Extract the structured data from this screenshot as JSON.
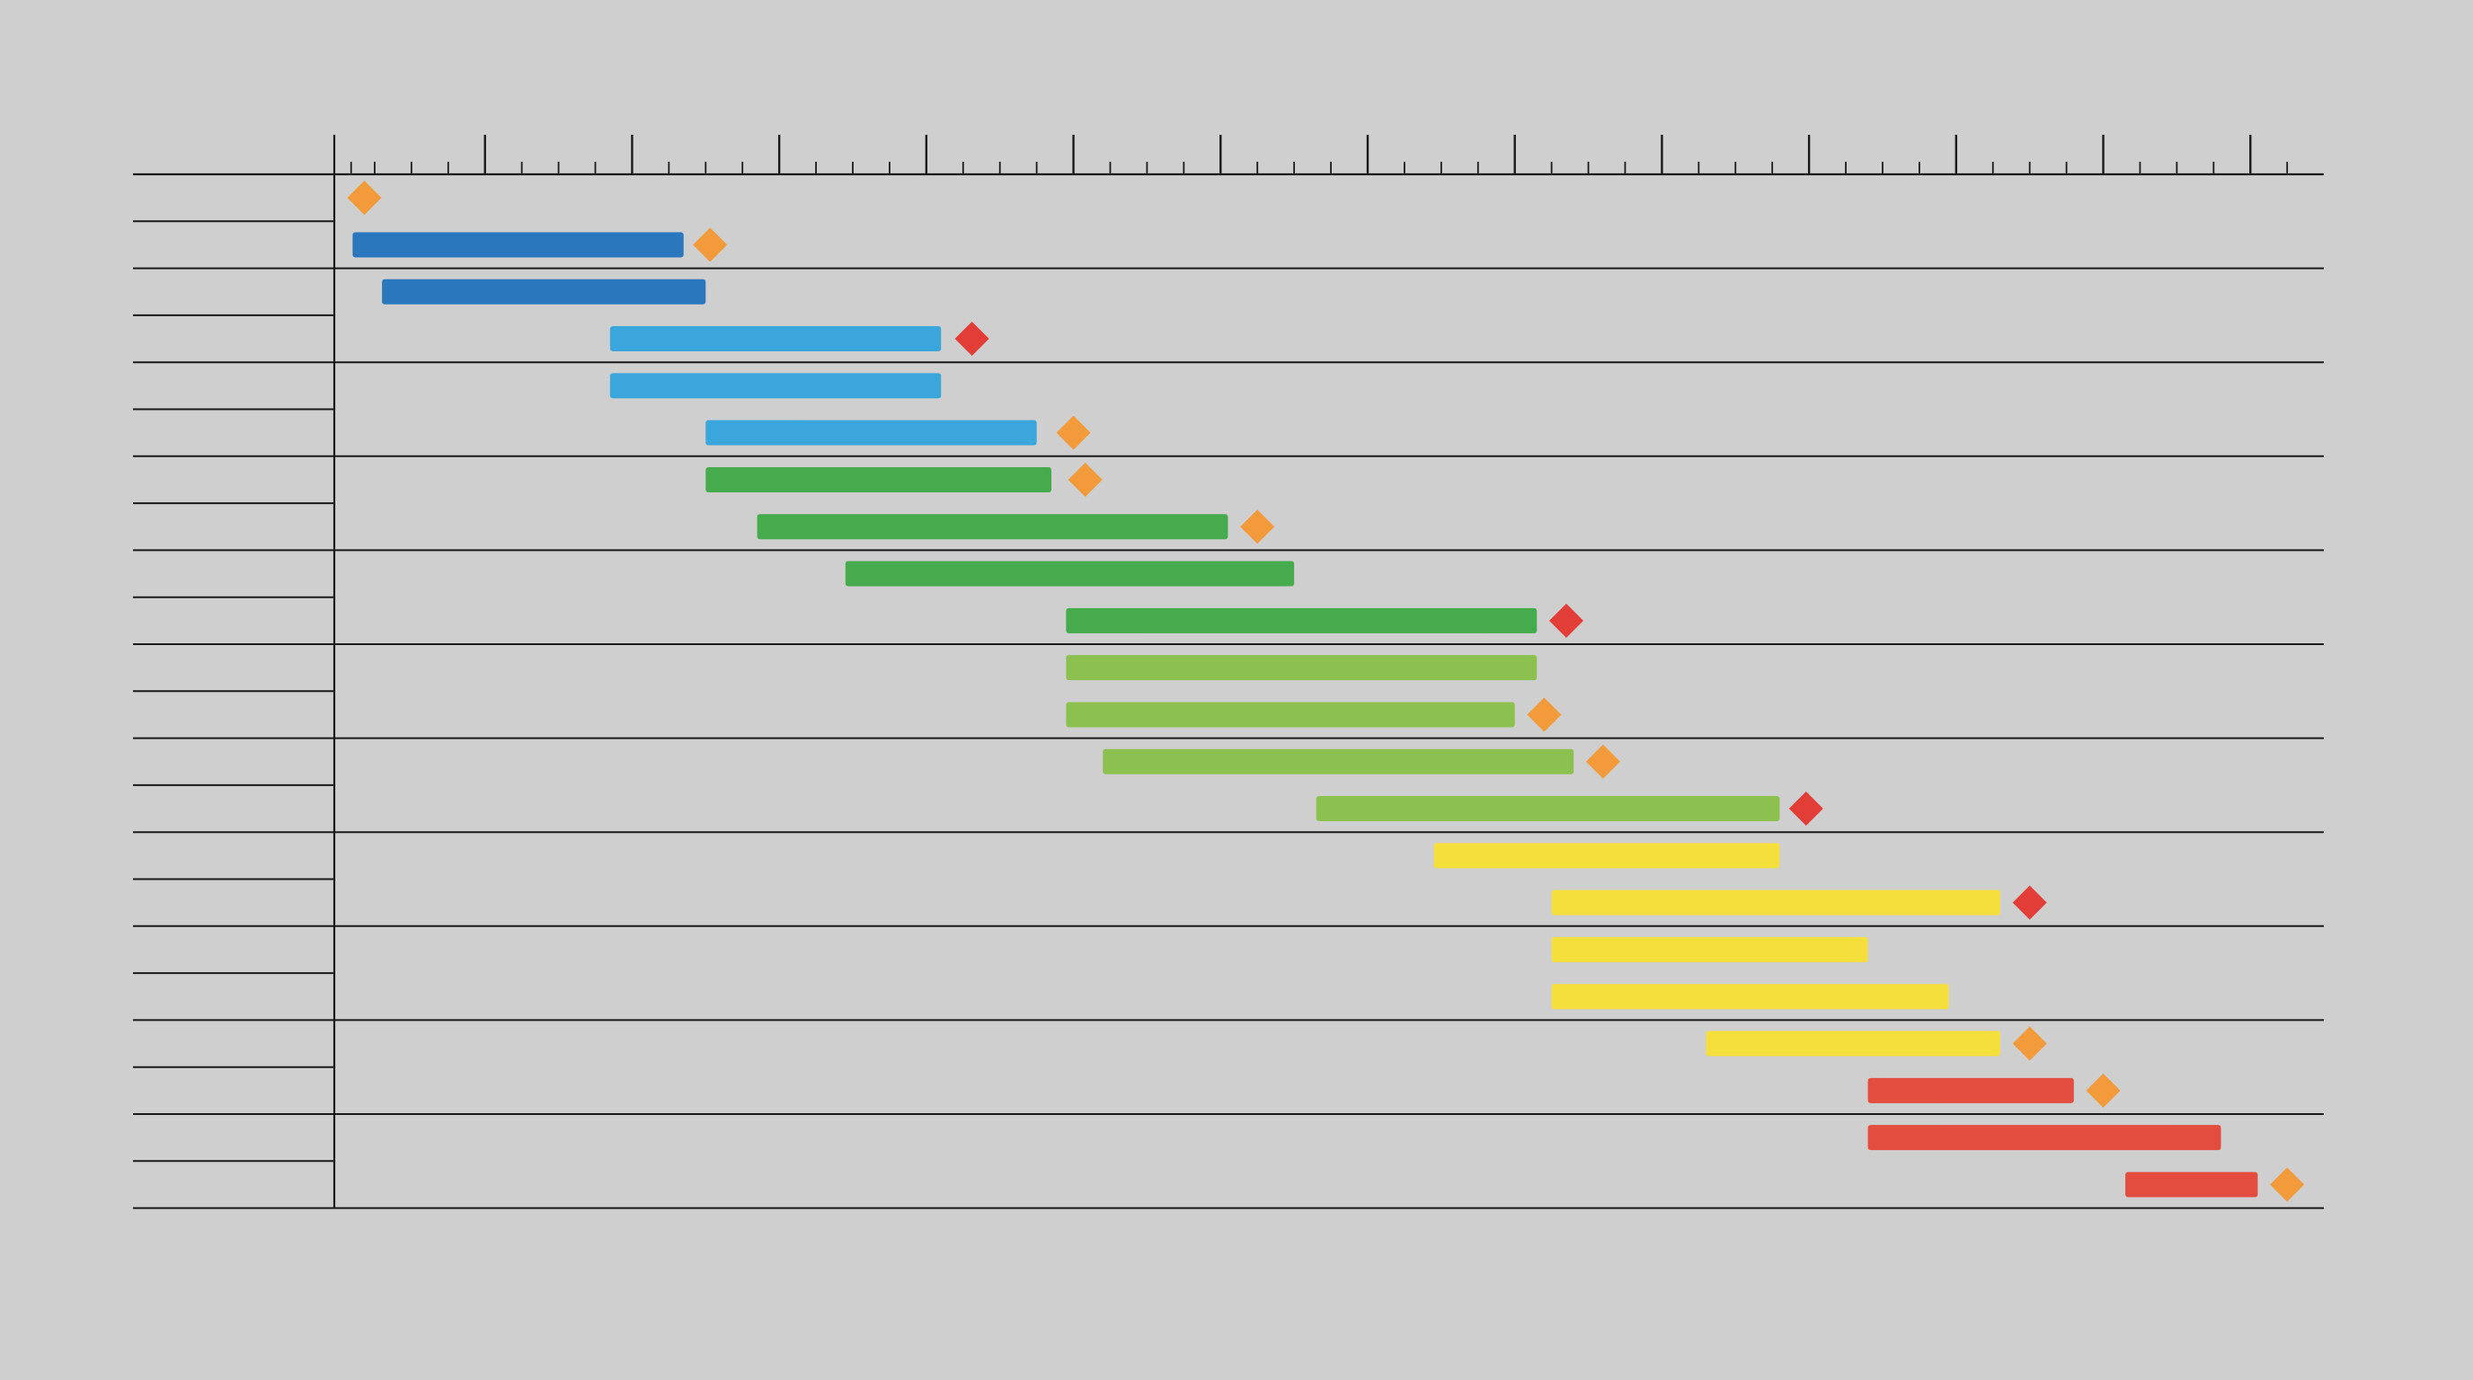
{
  "colors": {
    "background": "#cfcfcf",
    "grid_line": "#1a1a1a",
    "phase_1": "#2a77bd",
    "phase_2": "#3aa6dc",
    "phase_3": "#45ab4d",
    "phase_4": "#8cc04f",
    "phase_5": "#f4df3c",
    "phase_6": "#e34d3f",
    "milestone_minor": "#f39a3a",
    "milestone_major": "#e23e37"
  },
  "chart_data": {
    "type": "gantt",
    "title": "",
    "xlabel": "",
    "ylabel": "",
    "grid": true,
    "legend": "none",
    "xlim": [
      0,
      132
    ],
    "x_major_tick_interval": 10,
    "x_minor_tick_interval": 2.5,
    "x_tick_labels": [],
    "row_labels": [],
    "row_count": 22,
    "group_size": 2,
    "bars": [
      {
        "row": 1,
        "start": 1,
        "end": 23.5,
        "color_key": "phase_1"
      },
      {
        "row": 2,
        "start": 3,
        "end": 25,
        "color_key": "phase_1"
      },
      {
        "row": 3,
        "start": 18.5,
        "end": 41,
        "color_key": "phase_2"
      },
      {
        "row": 4,
        "start": 18.5,
        "end": 41,
        "color_key": "phase_2"
      },
      {
        "row": 5,
        "start": 25,
        "end": 47.5,
        "color_key": "phase_2"
      },
      {
        "row": 6,
        "start": 25,
        "end": 48.5,
        "color_key": "phase_3"
      },
      {
        "row": 7,
        "start": 28.5,
        "end": 60.5,
        "color_key": "phase_3"
      },
      {
        "row": 8,
        "start": 34.5,
        "end": 65,
        "color_key": "phase_3"
      },
      {
        "row": 9,
        "start": 49.5,
        "end": 81.5,
        "color_key": "phase_3"
      },
      {
        "row": 10,
        "start": 49.5,
        "end": 81.5,
        "color_key": "phase_4"
      },
      {
        "row": 11,
        "start": 49.5,
        "end": 80,
        "color_key": "phase_4"
      },
      {
        "row": 12,
        "start": 52,
        "end": 84,
        "color_key": "phase_4"
      },
      {
        "row": 13,
        "start": 66.5,
        "end": 98,
        "color_key": "phase_4"
      },
      {
        "row": 14,
        "start": 74.5,
        "end": 98,
        "color_key": "phase_5"
      },
      {
        "row": 15,
        "start": 82.5,
        "end": 113,
        "color_key": "phase_5"
      },
      {
        "row": 16,
        "start": 82.5,
        "end": 104,
        "color_key": "phase_5"
      },
      {
        "row": 17,
        "start": 82.5,
        "end": 109.5,
        "color_key": "phase_5"
      },
      {
        "row": 18,
        "start": 93,
        "end": 113,
        "color_key": "phase_5"
      },
      {
        "row": 19,
        "start": 104,
        "end": 118,
        "color_key": "phase_6"
      },
      {
        "row": 20,
        "start": 104,
        "end": 128,
        "color_key": "phase_6"
      },
      {
        "row": 21,
        "start": 121.5,
        "end": 130.5,
        "color_key": "phase_6"
      }
    ],
    "milestones": [
      {
        "row": 0,
        "x": 1.8,
        "type": "minor"
      },
      {
        "row": 1,
        "x": 25.3,
        "type": "minor"
      },
      {
        "row": 3,
        "x": 43.1,
        "type": "major"
      },
      {
        "row": 5,
        "x": 50,
        "type": "minor"
      },
      {
        "row": 6,
        "x": 50.8,
        "type": "minor"
      },
      {
        "row": 7,
        "x": 62.5,
        "type": "minor"
      },
      {
        "row": 9,
        "x": 83.5,
        "type": "major"
      },
      {
        "row": 11,
        "x": 82,
        "type": "minor"
      },
      {
        "row": 12,
        "x": 86,
        "type": "minor"
      },
      {
        "row": 13,
        "x": 99.8,
        "type": "major"
      },
      {
        "row": 15,
        "x": 115,
        "type": "major"
      },
      {
        "row": 18,
        "x": 115,
        "type": "minor"
      },
      {
        "row": 19,
        "x": 120,
        "type": "minor"
      },
      {
        "row": 21,
        "x": 132.5,
        "type": "minor"
      }
    ]
  }
}
